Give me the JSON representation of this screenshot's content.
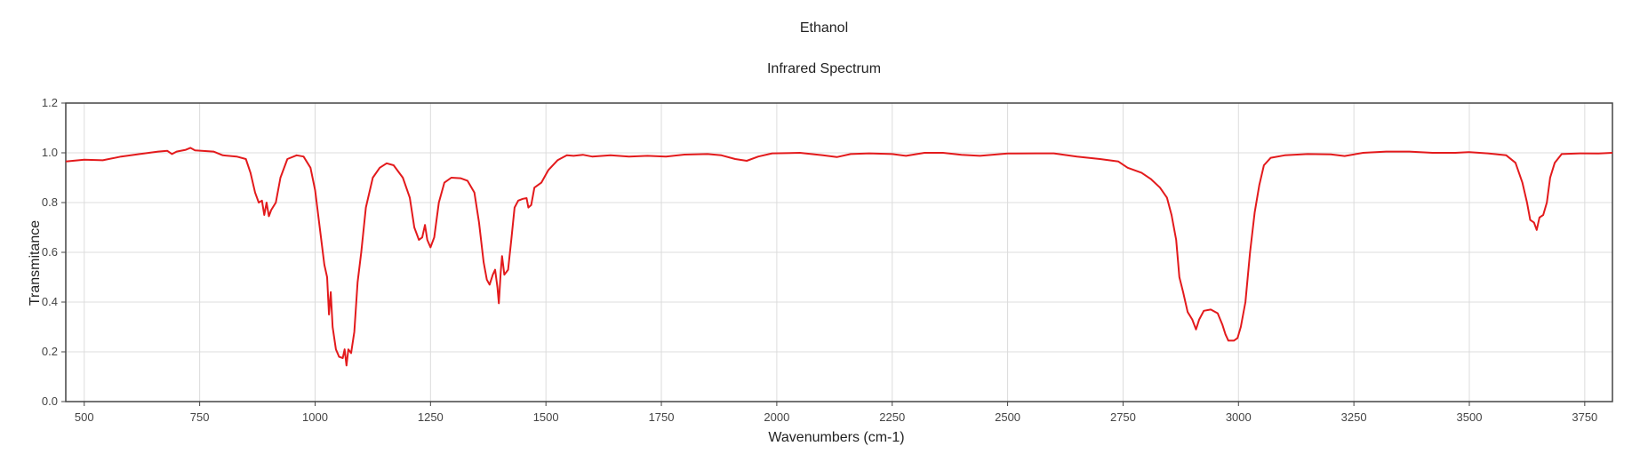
{
  "chart_data": {
    "type": "line",
    "title": "Ethanol",
    "subtitle": "Infrared Spectrum",
    "xlabel": "Wavenumbers (cm-1)",
    "ylabel": "Transmitance",
    "xlim": [
      460,
      3810
    ],
    "ylim": [
      0,
      1.2
    ],
    "xticks": [
      "500",
      "750",
      "1000",
      "1250",
      "1500",
      "1750",
      "2000",
      "2250",
      "2500",
      "2750",
      "3000",
      "3250",
      "3500",
      "3750"
    ],
    "xtick_values": [
      500,
      750,
      1000,
      1250,
      1500,
      1750,
      2000,
      2250,
      2500,
      2750,
      3000,
      3250,
      3500,
      3750
    ],
    "yticks": [
      "0.0",
      "0.2",
      "0.4",
      "0.6",
      "0.8",
      "1.0",
      "1.2"
    ],
    "ytick_values": [
      0,
      0.2,
      0.4,
      0.6,
      0.8,
      1.0,
      1.2
    ],
    "grid": true,
    "series": [
      {
        "color": "#e31a1c",
        "points": [
          [
            460,
            0.965
          ],
          [
            500,
            0.972
          ],
          [
            540,
            0.97
          ],
          [
            580,
            0.985
          ],
          [
            620,
            0.995
          ],
          [
            660,
            1.005
          ],
          [
            680,
            1.008
          ],
          [
            690,
            0.995
          ],
          [
            700,
            1.005
          ],
          [
            720,
            1.012
          ],
          [
            730,
            1.02
          ],
          [
            740,
            1.01
          ],
          [
            780,
            1.005
          ],
          [
            800,
            0.99
          ],
          [
            830,
            0.985
          ],
          [
            850,
            0.975
          ],
          [
            860,
            0.92
          ],
          [
            870,
            0.84
          ],
          [
            878,
            0.8
          ],
          [
            885,
            0.808
          ],
          [
            890,
            0.75
          ],
          [
            895,
            0.8
          ],
          [
            900,
            0.745
          ],
          [
            905,
            0.77
          ],
          [
            915,
            0.8
          ],
          [
            925,
            0.9
          ],
          [
            940,
            0.975
          ],
          [
            960,
            0.99
          ],
          [
            975,
            0.985
          ],
          [
            990,
            0.94
          ],
          [
            1000,
            0.85
          ],
          [
            1010,
            0.7
          ],
          [
            1020,
            0.55
          ],
          [
            1026,
            0.5
          ],
          [
            1030,
            0.35
          ],
          [
            1034,
            0.44
          ],
          [
            1038,
            0.3
          ],
          [
            1045,
            0.21
          ],
          [
            1052,
            0.18
          ],
          [
            1060,
            0.175
          ],
          [
            1064,
            0.21
          ],
          [
            1068,
            0.145
          ],
          [
            1072,
            0.21
          ],
          [
            1078,
            0.195
          ],
          [
            1085,
            0.28
          ],
          [
            1092,
            0.48
          ],
          [
            1100,
            0.6
          ],
          [
            1110,
            0.78
          ],
          [
            1125,
            0.9
          ],
          [
            1140,
            0.94
          ],
          [
            1155,
            0.958
          ],
          [
            1170,
            0.95
          ],
          [
            1190,
            0.9
          ],
          [
            1205,
            0.82
          ],
          [
            1215,
            0.7
          ],
          [
            1225,
            0.65
          ],
          [
            1232,
            0.66
          ],
          [
            1238,
            0.71
          ],
          [
            1243,
            0.65
          ],
          [
            1250,
            0.62
          ],
          [
            1258,
            0.66
          ],
          [
            1268,
            0.8
          ],
          [
            1280,
            0.88
          ],
          [
            1295,
            0.9
          ],
          [
            1315,
            0.898
          ],
          [
            1330,
            0.888
          ],
          [
            1345,
            0.84
          ],
          [
            1355,
            0.72
          ],
          [
            1365,
            0.56
          ],
          [
            1372,
            0.49
          ],
          [
            1378,
            0.47
          ],
          [
            1385,
            0.51
          ],
          [
            1390,
            0.53
          ],
          [
            1395,
            0.46
          ],
          [
            1398,
            0.395
          ],
          [
            1402,
            0.52
          ],
          [
            1405,
            0.585
          ],
          [
            1410,
            0.51
          ],
          [
            1418,
            0.53
          ],
          [
            1425,
            0.65
          ],
          [
            1432,
            0.78
          ],
          [
            1440,
            0.808
          ],
          [
            1450,
            0.815
          ],
          [
            1458,
            0.818
          ],
          [
            1462,
            0.78
          ],
          [
            1468,
            0.79
          ],
          [
            1475,
            0.86
          ],
          [
            1490,
            0.88
          ],
          [
            1505,
            0.93
          ],
          [
            1525,
            0.97
          ],
          [
            1545,
            0.99
          ],
          [
            1560,
            0.988
          ],
          [
            1580,
            0.992
          ],
          [
            1600,
            0.985
          ],
          [
            1640,
            0.99
          ],
          [
            1680,
            0.985
          ],
          [
            1720,
            0.988
          ],
          [
            1760,
            0.985
          ],
          [
            1800,
            0.993
          ],
          [
            1850,
            0.995
          ],
          [
            1880,
            0.99
          ],
          [
            1910,
            0.975
          ],
          [
            1935,
            0.968
          ],
          [
            1960,
            0.985
          ],
          [
            1990,
            0.998
          ],
          [
            2050,
            1.0
          ],
          [
            2100,
            0.99
          ],
          [
            2130,
            0.983
          ],
          [
            2160,
            0.995
          ],
          [
            2200,
            0.998
          ],
          [
            2250,
            0.995
          ],
          [
            2280,
            0.988
          ],
          [
            2320,
            1.0
          ],
          [
            2360,
            1.0
          ],
          [
            2400,
            0.992
          ],
          [
            2440,
            0.988
          ],
          [
            2500,
            0.997
          ],
          [
            2560,
            0.998
          ],
          [
            2600,
            0.998
          ],
          [
            2650,
            0.985
          ],
          [
            2700,
            0.975
          ],
          [
            2740,
            0.965
          ],
          [
            2760,
            0.94
          ],
          [
            2790,
            0.92
          ],
          [
            2810,
            0.895
          ],
          [
            2830,
            0.86
          ],
          [
            2845,
            0.82
          ],
          [
            2855,
            0.75
          ],
          [
            2865,
            0.65
          ],
          [
            2872,
            0.5
          ],
          [
            2880,
            0.44
          ],
          [
            2890,
            0.36
          ],
          [
            2900,
            0.33
          ],
          [
            2908,
            0.29
          ],
          [
            2915,
            0.33
          ],
          [
            2925,
            0.365
          ],
          [
            2940,
            0.37
          ],
          [
            2955,
            0.355
          ],
          [
            2965,
            0.31
          ],
          [
            2972,
            0.27
          ],
          [
            2978,
            0.245
          ],
          [
            2990,
            0.245
          ],
          [
            2998,
            0.255
          ],
          [
            3005,
            0.3
          ],
          [
            3015,
            0.4
          ],
          [
            3025,
            0.6
          ],
          [
            3035,
            0.76
          ],
          [
            3045,
            0.87
          ],
          [
            3055,
            0.95
          ],
          [
            3070,
            0.98
          ],
          [
            3100,
            0.99
          ],
          [
            3150,
            0.995
          ],
          [
            3200,
            0.994
          ],
          [
            3230,
            0.987
          ],
          [
            3270,
            1.0
          ],
          [
            3320,
            1.005
          ],
          [
            3370,
            1.005
          ],
          [
            3420,
            1.0
          ],
          [
            3470,
            1.0
          ],
          [
            3500,
            1.003
          ],
          [
            3540,
            0.998
          ],
          [
            3580,
            0.99
          ],
          [
            3600,
            0.96
          ],
          [
            3615,
            0.88
          ],
          [
            3625,
            0.8
          ],
          [
            3632,
            0.73
          ],
          [
            3640,
            0.72
          ],
          [
            3646,
            0.69
          ],
          [
            3652,
            0.74
          ],
          [
            3660,
            0.75
          ],
          [
            3668,
            0.8
          ],
          [
            3675,
            0.9
          ],
          [
            3685,
            0.96
          ],
          [
            3700,
            0.995
          ],
          [
            3740,
            0.998
          ],
          [
            3780,
            0.997
          ],
          [
            3810,
            1.0
          ]
        ]
      }
    ]
  }
}
